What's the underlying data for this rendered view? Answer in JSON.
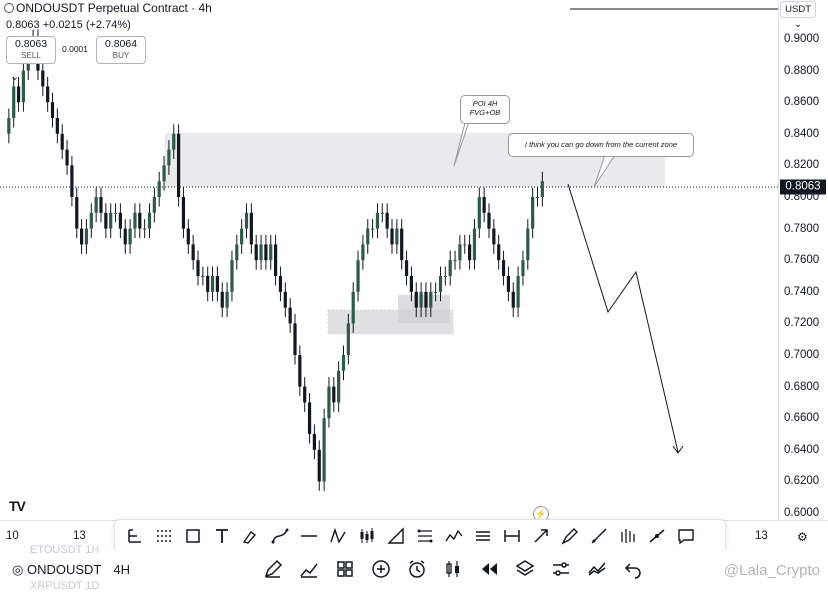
{
  "header": {
    "symbol_title": "ONDOUSDT Perpetual Contract · 4h",
    "last_price": "0.8063",
    "change": "+0.0215 (+2.74%)",
    "sell_price": "0.8063",
    "sell_label": "SELL",
    "spread": "0.0001",
    "buy_price": "0.8064",
    "buy_label": "BUY",
    "currency": "USDT"
  },
  "price_axis": {
    "ticks": [
      "0.9000",
      "0.8800",
      "0.8600",
      "0.8400",
      "0.8200",
      "0.8000",
      "0.7800",
      "0.7600",
      "0.7400",
      "0.7200",
      "0.7000",
      "0.6800",
      "0.6600",
      "0.6400",
      "0.6200",
      "0.6000"
    ],
    "current_price_label": "0.8063"
  },
  "time_axis": {
    "ticks": [
      "10",
      "13",
      "13"
    ]
  },
  "annotations": {
    "poi_note_line1": "POI 4H",
    "poi_note_line2": "FVG+OB",
    "comment": "I think you can go down from the current zone"
  },
  "colors": {
    "up": "#2e5b45",
    "down": "#131722",
    "zone": "#e3e3e6",
    "accent": "#131722"
  },
  "drawing_tools": [
    "trend-line-icon",
    "fib-icon",
    "rectangle-icon",
    "text-icon",
    "brush-icon",
    "path-icon",
    "horizontal-line-icon",
    "xabcd-pattern-icon",
    "candles-pattern-icon",
    "triangle-icon",
    "fib-channel-icon",
    "elliott-wave-icon",
    "parallel-channel-icon",
    "date-range-icon",
    "arrow-icon",
    "highlighter-icon",
    "ray-icon",
    "volume-profile-icon",
    "info-line-icon",
    "comment-icon"
  ],
  "bottom": {
    "prev_symbol": "ETOUSDT  1H",
    "current_symbol": "ONDOUSDT",
    "current_interval": "4H",
    "next_symbol": "XRPUSDT  1D",
    "watermark": "@Lala_Crypto",
    "nav_icons": [
      "pencil-icon",
      "indicators-icon",
      "layouts-icon",
      "add-icon",
      "alarm-icon",
      "candle-type-icon",
      "replay-icon",
      "layers-icon",
      "settings-sliders-icon",
      "compare-icon",
      "undo-icon",
      "redo-icon",
      "zoom-icon",
      "cursor-icon"
    ]
  },
  "tradingview_logo": "TV"
}
